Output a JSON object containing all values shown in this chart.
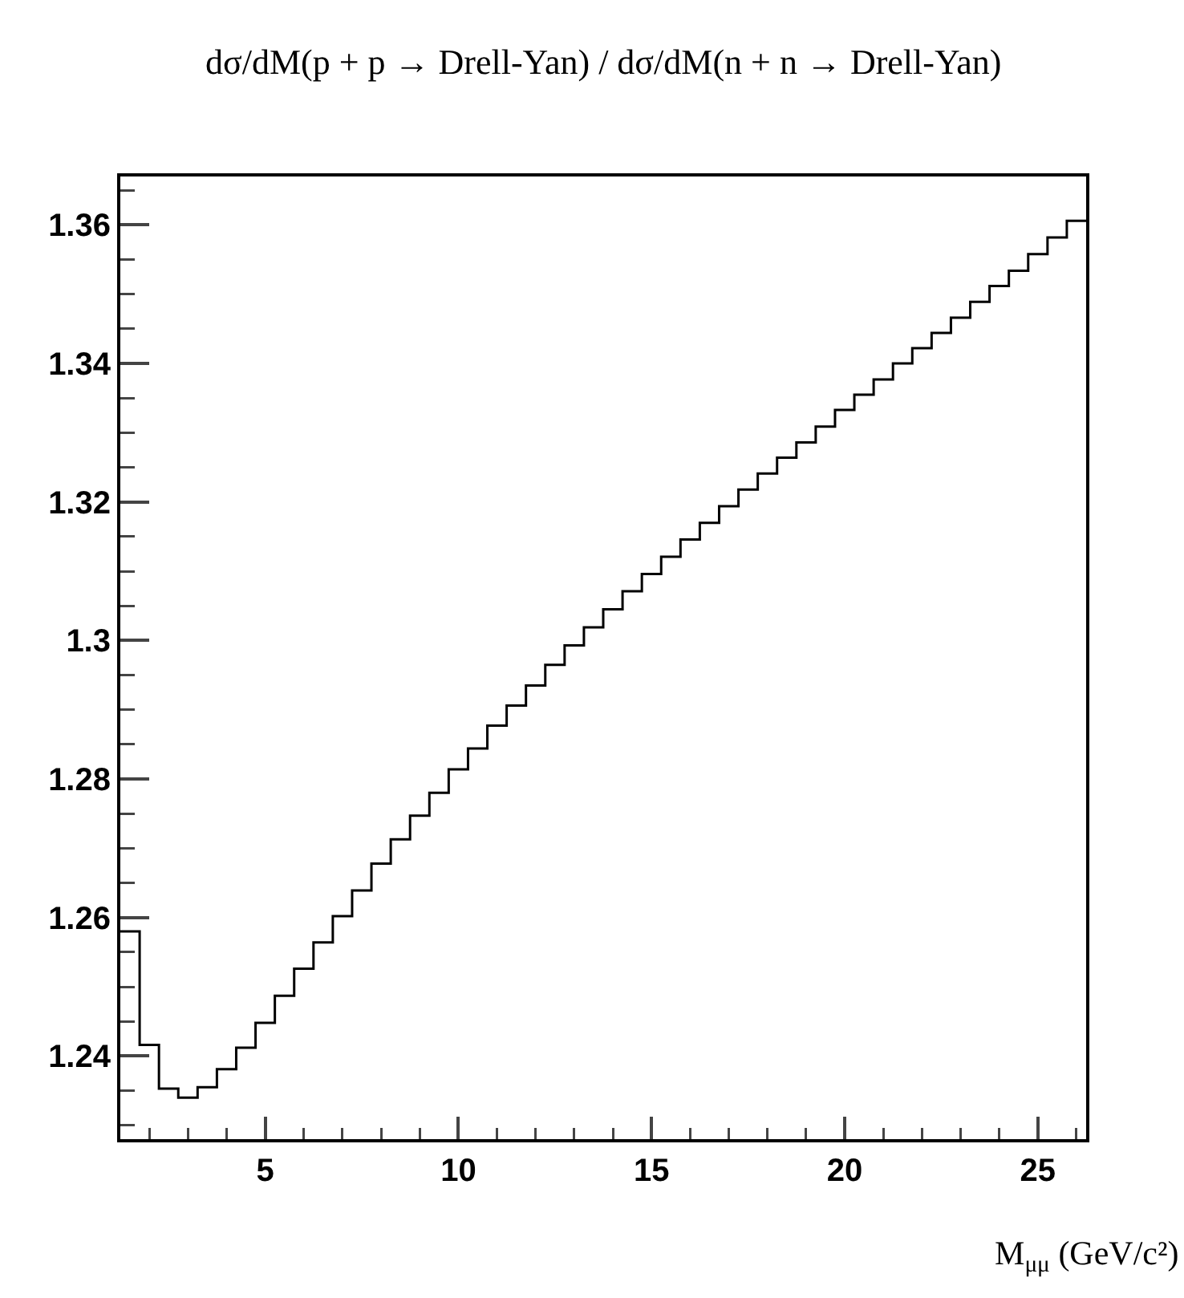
{
  "chart_data": {
    "type": "histogram",
    "title": "dσ/dM(p + p → Drell-Yan) / dσ/dM(n + n → Drell-Yan)",
    "xlabel": "M$_{μμ}$ (GeV/c²)",
    "color": "#000000",
    "bins": [
      1.25,
      1.75,
      2.25,
      2.75,
      3.25,
      3.75,
      4.25,
      4.75,
      5.25,
      5.75,
      6.25,
      6.75,
      7.25,
      7.75,
      8.25,
      8.75,
      9.25,
      9.75,
      10.25,
      10.75,
      11.25,
      11.75,
      12.25,
      12.75,
      13.25,
      13.75,
      14.25,
      14.75,
      15.25,
      15.75,
      16.25,
      16.75,
      17.25,
      17.75,
      18.25,
      18.75,
      19.25,
      19.75,
      20.25,
      20.75,
      21.25,
      21.75,
      22.25,
      22.75,
      23.25,
      23.75,
      24.25,
      24.75,
      25.25,
      25.75,
      26.25
    ],
    "values": [
      1.258,
      1.2416,
      1.2353,
      1.234,
      1.2355,
      1.2381,
      1.2412,
      1.2448,
      1.2487,
      1.2526,
      1.2564,
      1.2602,
      1.2639,
      1.2678,
      1.2713,
      1.2747,
      1.278,
      1.2814,
      1.2844,
      1.2877,
      1.2906,
      1.2935,
      1.2965,
      1.2993,
      1.3019,
      1.3045,
      1.3071,
      1.3096,
      1.3121,
      1.3146,
      1.317,
      1.3194,
      1.3218,
      1.3241,
      1.3264,
      1.3286,
      1.3309,
      1.3333,
      1.3355,
      1.3377,
      1.34,
      1.3422,
      1.3444,
      1.3466,
      1.3489,
      1.3512,
      1.3534,
      1.3558,
      1.3582,
      1.3606
    ],
    "xlim": [
      1.25,
      26.25
    ],
    "xticks": [
      5,
      10,
      15,
      20,
      25
    ],
    "ylim": [
      1.228,
      1.367
    ],
    "yticks": [
      1.24,
      1.26,
      1.28,
      1.3,
      1.32,
      1.34,
      1.36
    ]
  }
}
